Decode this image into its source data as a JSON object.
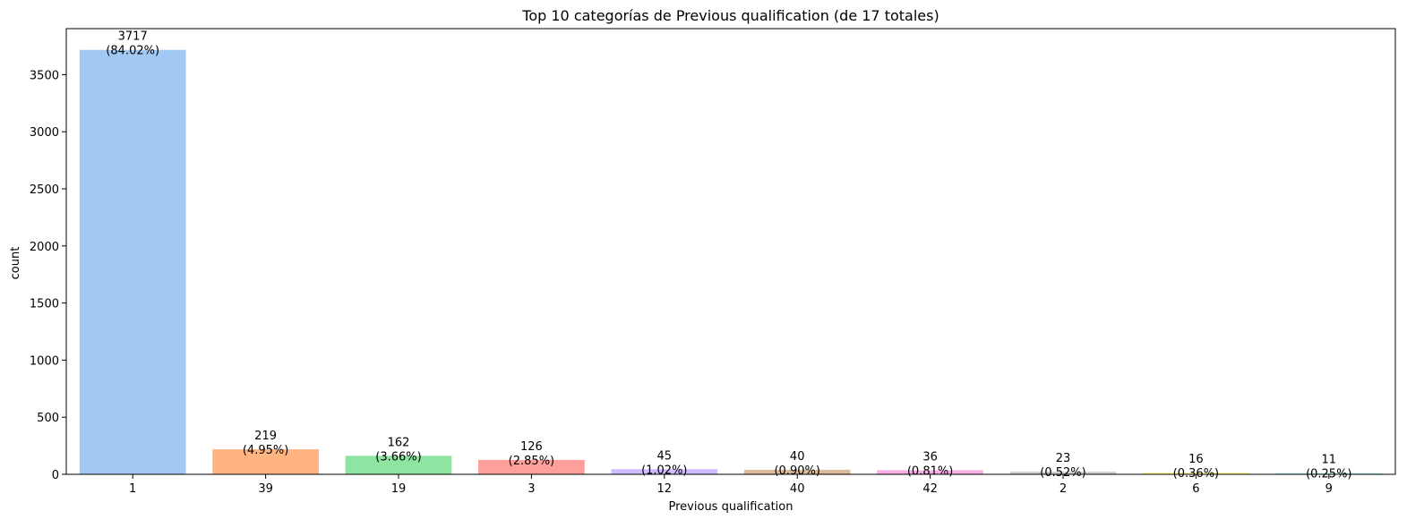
{
  "chart_data": {
    "type": "bar",
    "title": "Top 10 categorías de Previous qualification (de 17 totales)",
    "xlabel": "Previous qualification",
    "ylabel": "count",
    "categories": [
      "1",
      "39",
      "19",
      "3",
      "12",
      "40",
      "42",
      "2",
      "6",
      "9"
    ],
    "values": [
      3717,
      219,
      162,
      126,
      45,
      40,
      36,
      23,
      16,
      11
    ],
    "percent_labels": [
      "(84.02%)",
      "(4.95%)",
      "(3.66%)",
      "(2.85%)",
      "(1.02%)",
      "(0.90%)",
      "(0.81%)",
      "(0.52%)",
      "(0.36%)",
      "(0.25%)"
    ],
    "colors": [
      "#a1c9f4",
      "#ffb482",
      "#8de5a1",
      "#ff9f9b",
      "#d0bbff",
      "#debb9b",
      "#fab0e4",
      "#cfcfcf",
      "#fffea3",
      "#b9f2f0"
    ],
    "yticks": [
      0,
      500,
      1000,
      1500,
      2000,
      2500,
      3000,
      3500
    ],
    "ylim": [
      0,
      3902.85
    ],
    "grid": false,
    "legend": "none"
  }
}
